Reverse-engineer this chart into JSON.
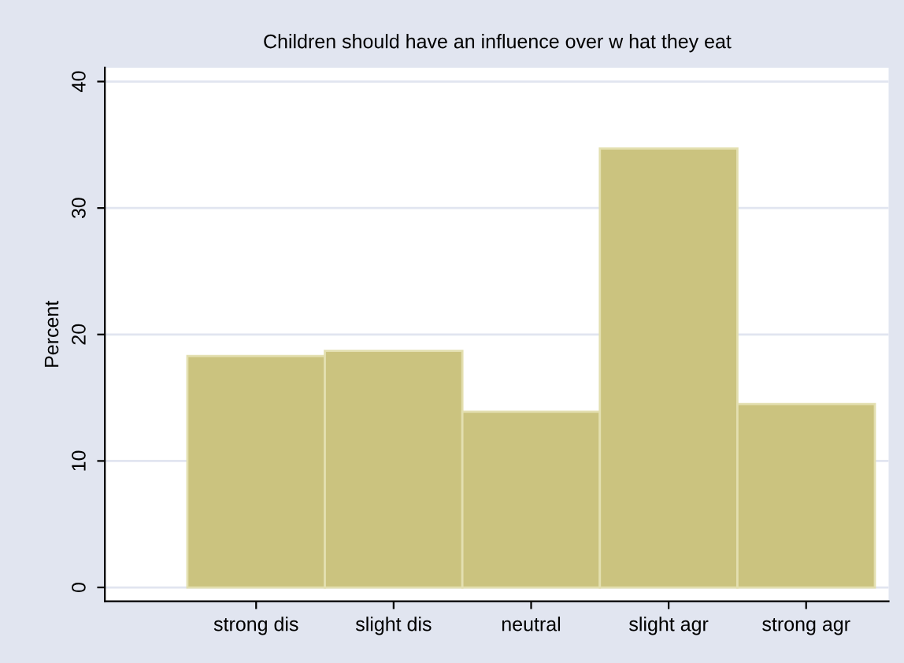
{
  "chart_data": {
    "type": "bar",
    "title": "Children should have an influence over w hat they eat",
    "ylabel": "Percent",
    "categories": [
      "strong dis",
      "slight dis",
      "neutral",
      "slight agr",
      "strong agr"
    ],
    "values": [
      18.3,
      18.7,
      13.9,
      34.7,
      14.5
    ],
    "color": "#cbc37f",
    "ylim": [
      -1.1,
      41.1
    ],
    "yticks": [
      0,
      10,
      20,
      30,
      40
    ],
    "grid": "y",
    "legend": false
  }
}
